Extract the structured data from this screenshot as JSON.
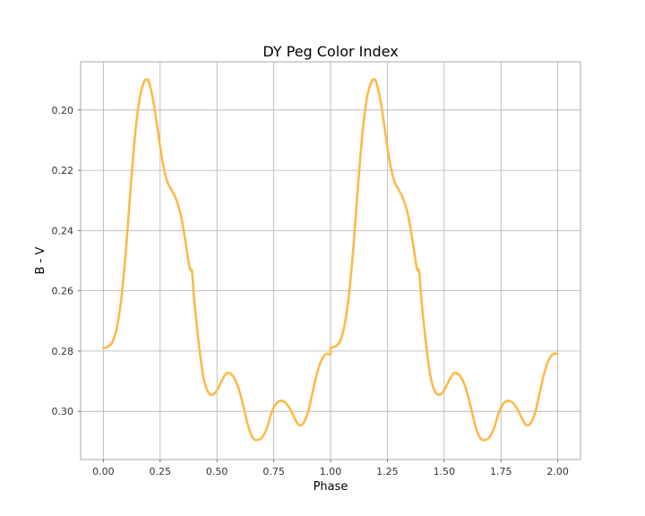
{
  "chart_data": {
    "type": "line",
    "title": "DY Peg Color Index",
    "xlabel": "Phase",
    "ylabel": "B - V",
    "xlim": [
      -0.1,
      2.1
    ],
    "ylim": [
      0.316,
      0.184
    ],
    "y_inverted": true,
    "grid": true,
    "x_ticks": [
      "0.00",
      "0.25",
      "0.50",
      "0.75",
      "1.00",
      "1.25",
      "1.50",
      "1.75",
      "2.00"
    ],
    "y_ticks": [
      "0.20",
      "0.22",
      "0.24",
      "0.26",
      "0.28",
      "0.30"
    ],
    "colors": {
      "line": "#fdb94a",
      "grid": "#b0b0b0",
      "frame": "#aaaaaa"
    },
    "series": [
      {
        "values": [
          [
            0.0,
            0.279
          ],
          [
            0.02,
            0.2785
          ],
          [
            0.04,
            0.277
          ],
          [
            0.06,
            0.272
          ],
          [
            0.08,
            0.262
          ],
          [
            0.1,
            0.246
          ],
          [
            0.12,
            0.226
          ],
          [
            0.14,
            0.208
          ],
          [
            0.16,
            0.196
          ],
          [
            0.18,
            0.1905
          ],
          [
            0.19,
            0.19
          ],
          [
            0.2,
            0.1905
          ],
          [
            0.22,
            0.197
          ],
          [
            0.24,
            0.207
          ],
          [
            0.26,
            0.217
          ],
          [
            0.28,
            0.2235
          ],
          [
            0.3,
            0.2265
          ],
          [
            0.32,
            0.2295
          ],
          [
            0.34,
            0.2345
          ],
          [
            0.36,
            0.243
          ],
          [
            0.38,
            0.2525
          ],
          [
            0.39,
            0.2535
          ],
          [
            0.4,
            0.263
          ],
          [
            0.42,
            0.2775
          ],
          [
            0.44,
            0.2885
          ],
          [
            0.46,
            0.2935
          ],
          [
            0.48,
            0.2945
          ],
          [
            0.5,
            0.293
          ],
          [
            0.52,
            0.29
          ],
          [
            0.54,
            0.2875
          ],
          [
            0.56,
            0.2875
          ],
          [
            0.58,
            0.2895
          ],
          [
            0.6,
            0.2935
          ],
          [
            0.62,
            0.2995
          ],
          [
            0.64,
            0.3055
          ],
          [
            0.66,
            0.309
          ],
          [
            0.68,
            0.3095
          ],
          [
            0.7,
            0.3085
          ],
          [
            0.72,
            0.3055
          ],
          [
            0.74,
            0.3005
          ],
          [
            0.76,
            0.2975
          ],
          [
            0.78,
            0.2965
          ],
          [
            0.8,
            0.297
          ],
          [
            0.82,
            0.299
          ],
          [
            0.84,
            0.302
          ],
          [
            0.86,
            0.3045
          ],
          [
            0.88,
            0.304
          ],
          [
            0.9,
            0.3005
          ],
          [
            0.92,
            0.294
          ],
          [
            0.94,
            0.2875
          ],
          [
            0.96,
            0.283
          ],
          [
            0.98,
            0.281
          ],
          [
            1.0,
            0.281
          ],
          [
            1.0,
            0.279
          ],
          [
            1.02,
            0.2785
          ],
          [
            1.04,
            0.277
          ],
          [
            1.06,
            0.272
          ],
          [
            1.08,
            0.262
          ],
          [
            1.1,
            0.246
          ],
          [
            1.12,
            0.226
          ],
          [
            1.14,
            0.208
          ],
          [
            1.16,
            0.196
          ],
          [
            1.18,
            0.1905
          ],
          [
            1.19,
            0.19
          ],
          [
            1.2,
            0.1905
          ],
          [
            1.22,
            0.197
          ],
          [
            1.24,
            0.207
          ],
          [
            1.26,
            0.217
          ],
          [
            1.28,
            0.2235
          ],
          [
            1.3,
            0.2265
          ],
          [
            1.32,
            0.2295
          ],
          [
            1.34,
            0.2345
          ],
          [
            1.36,
            0.243
          ],
          [
            1.38,
            0.2525
          ],
          [
            1.39,
            0.2535
          ],
          [
            1.4,
            0.263
          ],
          [
            1.42,
            0.2775
          ],
          [
            1.44,
            0.2885
          ],
          [
            1.46,
            0.2935
          ],
          [
            1.48,
            0.2945
          ],
          [
            1.5,
            0.293
          ],
          [
            1.52,
            0.29
          ],
          [
            1.54,
            0.2875
          ],
          [
            1.56,
            0.2875
          ],
          [
            1.58,
            0.2895
          ],
          [
            1.6,
            0.2935
          ],
          [
            1.62,
            0.2995
          ],
          [
            1.64,
            0.3055
          ],
          [
            1.66,
            0.309
          ],
          [
            1.68,
            0.3095
          ],
          [
            1.7,
            0.3085
          ],
          [
            1.72,
            0.3055
          ],
          [
            1.74,
            0.3005
          ],
          [
            1.76,
            0.2975
          ],
          [
            1.78,
            0.2965
          ],
          [
            1.8,
            0.297
          ],
          [
            1.82,
            0.299
          ],
          [
            1.84,
            0.302
          ],
          [
            1.86,
            0.3045
          ],
          [
            1.88,
            0.304
          ],
          [
            1.9,
            0.3005
          ],
          [
            1.92,
            0.294
          ],
          [
            1.94,
            0.2875
          ],
          [
            1.96,
            0.283
          ],
          [
            1.98,
            0.281
          ],
          [
            2.0,
            0.281
          ]
        ]
      }
    ]
  }
}
